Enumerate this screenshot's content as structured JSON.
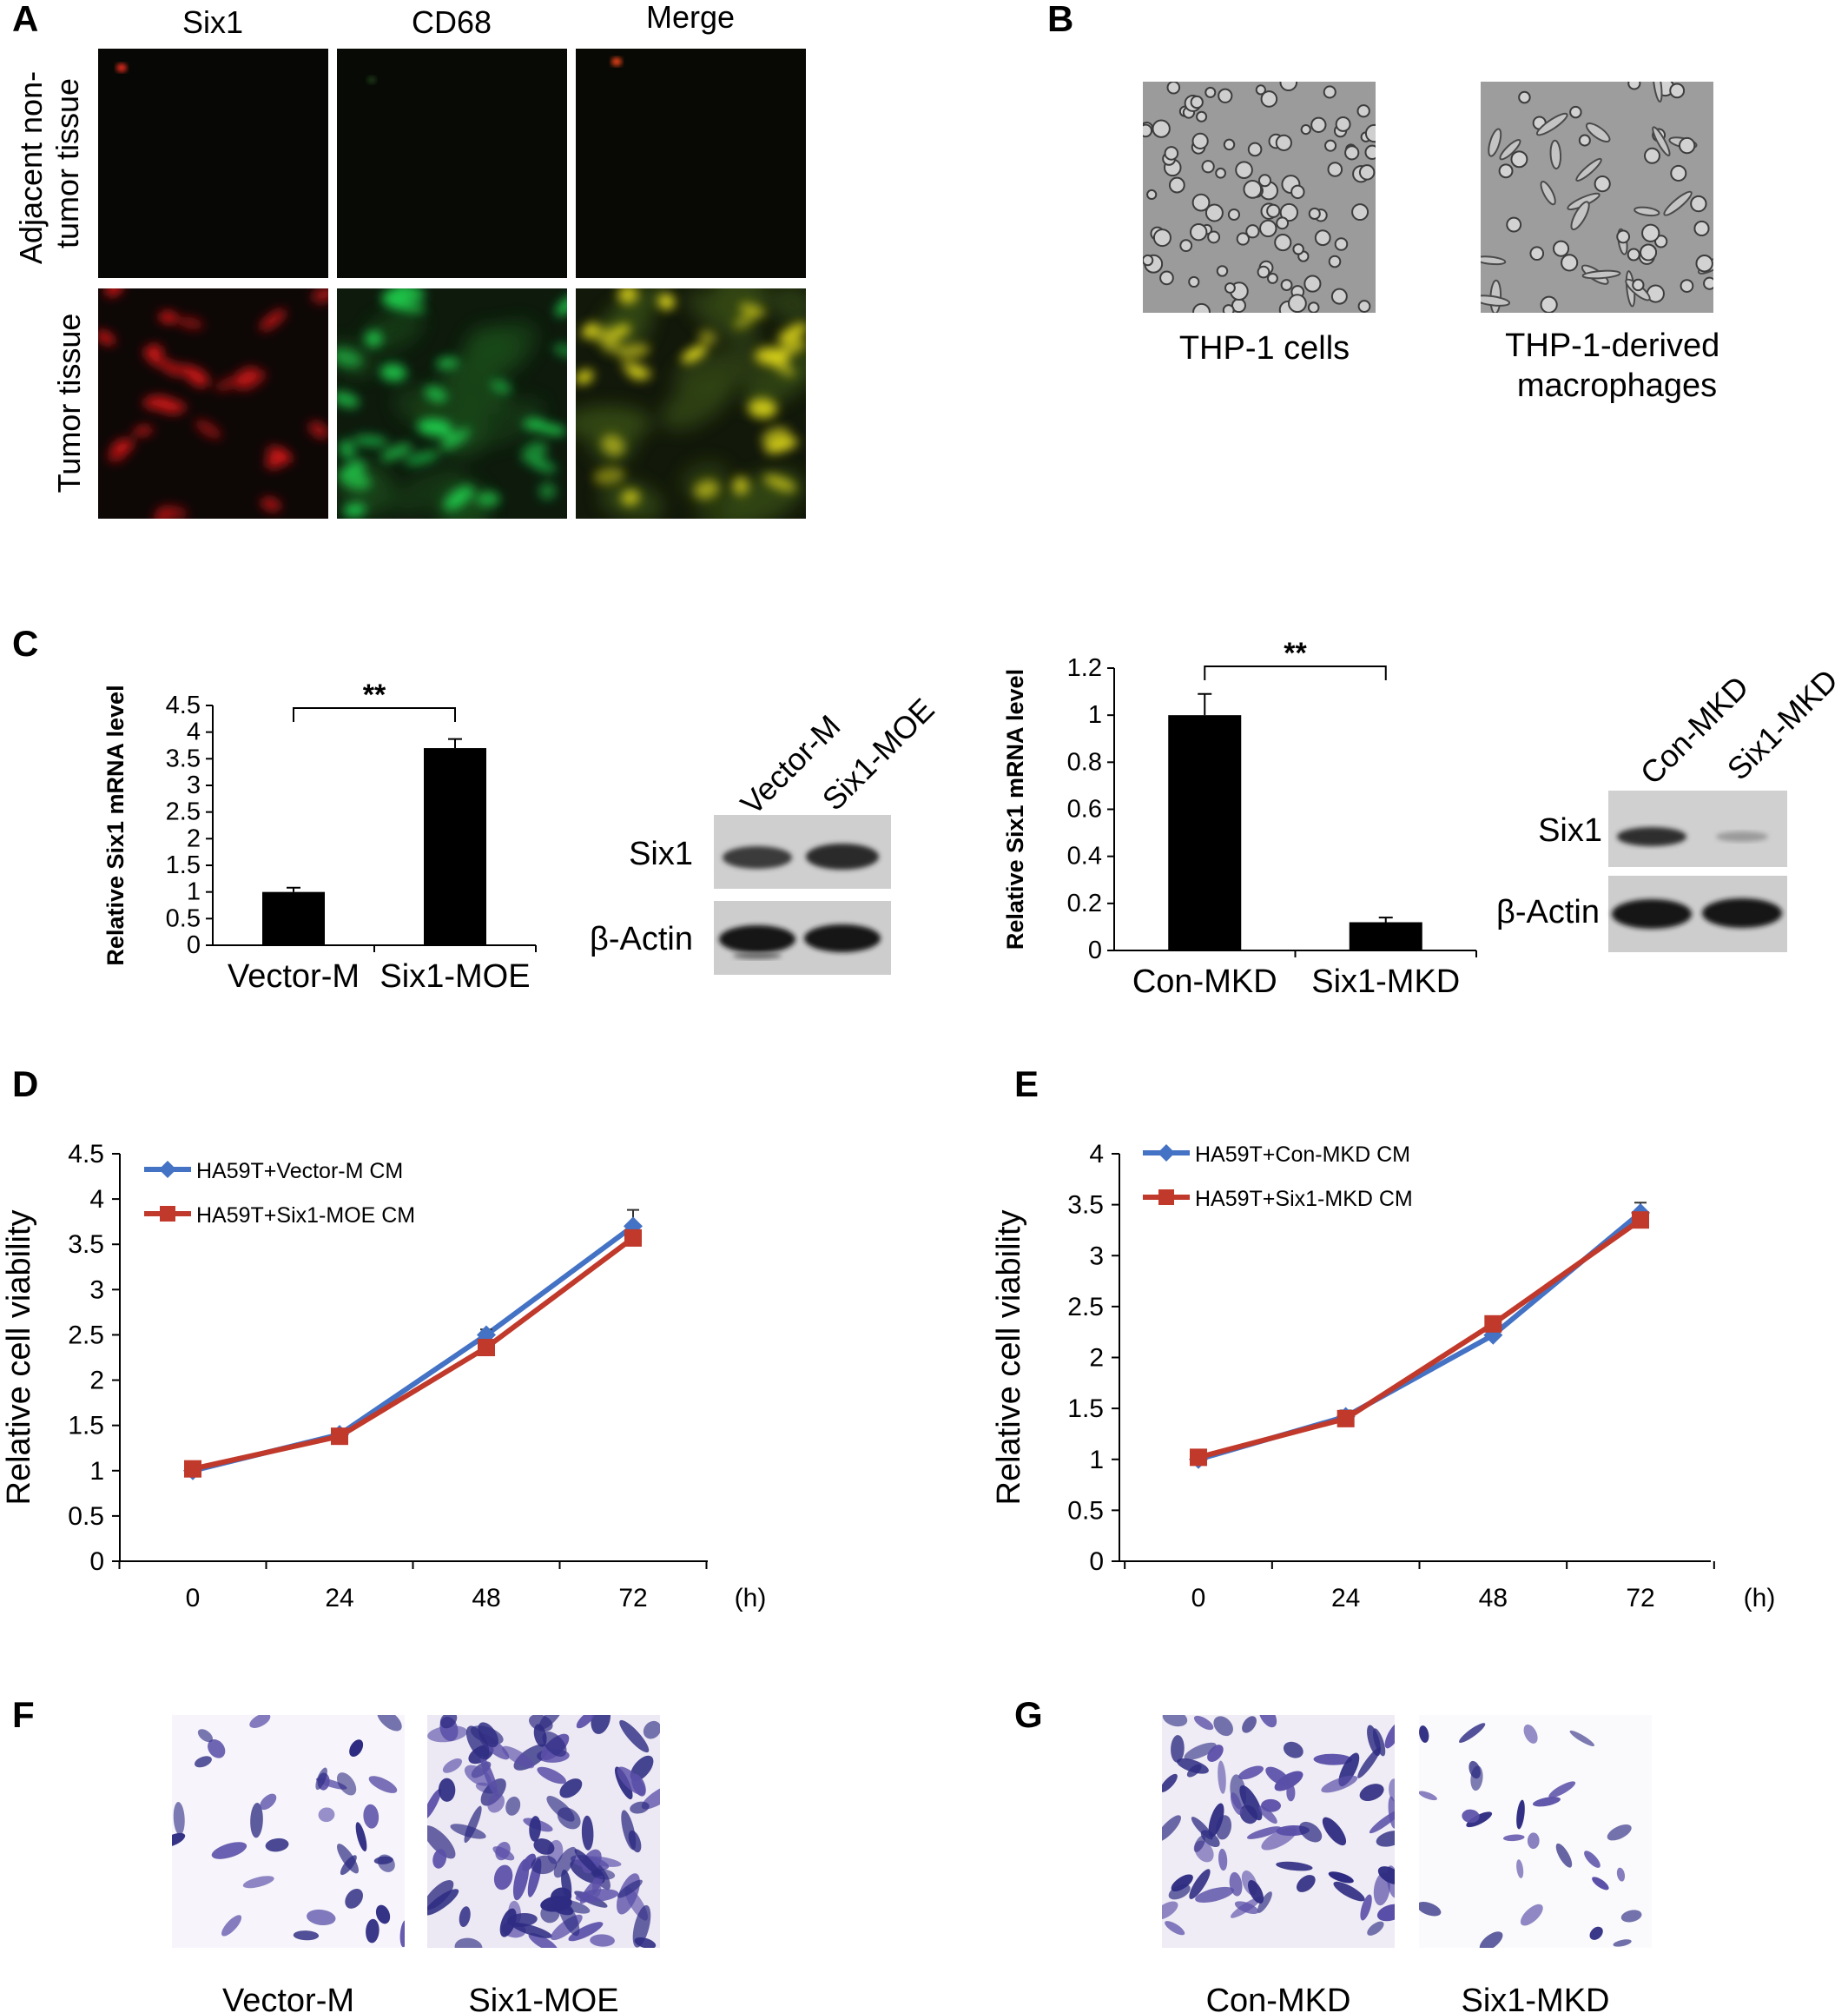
{
  "panels": {
    "A": {
      "letter": "A",
      "col_headers": [
        "Six1",
        "CD68",
        "Merge"
      ],
      "row_labels": [
        [
          "Adjacent non-",
          "tumor tissue"
        ],
        [
          "Tumor tissue"
        ]
      ]
    },
    "B": {
      "letter": "B",
      "captions": [
        [
          "THP-1 cells"
        ],
        [
          "THP-1-derived",
          "macrophages"
        ]
      ]
    },
    "C": {
      "letter": "C",
      "blot_left": {
        "lanes": [
          "Vector-M",
          "Six1-MOE"
        ],
        "rows": [
          "Six1",
          "β-Actin"
        ]
      },
      "blot_right": {
        "lanes": [
          "Con-MKD",
          "Six1-MKD"
        ],
        "rows": [
          "Six1",
          "β-Actin"
        ]
      }
    },
    "D": {
      "letter": "D"
    },
    "E": {
      "letter": "E"
    },
    "F": {
      "letter": "F",
      "captions": [
        "Vector-M",
        "Six1-MOE"
      ]
    },
    "G": {
      "letter": "G",
      "captions": [
        "Con-MKD",
        "Six1-MKD"
      ]
    }
  },
  "colors": {
    "blue_series": "#4472c4",
    "red_series": "#c0392b",
    "bar": "#000000"
  },
  "chart_data": [
    {
      "type": "bar",
      "panel": "C-left",
      "categories": [
        "Vector-M",
        "Six1-MOE"
      ],
      "values": [
        1.0,
        3.7
      ],
      "errors": [
        0.08,
        0.17
      ],
      "ylabel": "Relative Six1 mRNA level",
      "ylim": [
        0,
        4.5
      ],
      "yticks": [
        "0",
        "0.5",
        "1",
        "1.5",
        "2",
        "2.5",
        "3",
        "3.5",
        "4",
        "4.5"
      ],
      "significance": "**"
    },
    {
      "type": "bar",
      "panel": "C-right",
      "categories": [
        "Con-MKD",
        "Six1-MKD"
      ],
      "values": [
        1.0,
        0.12
      ],
      "errors": [
        0.09,
        0.02
      ],
      "ylabel": "Relative Six1 mRNA level",
      "ylim": [
        0,
        1.2
      ],
      "yticks": [
        "0",
        "0.2",
        "0.4",
        "0.6",
        "0.8",
        "1",
        "1.2"
      ],
      "significance": "**"
    },
    {
      "type": "line",
      "panel": "D",
      "x": [
        0,
        24,
        48,
        72
      ],
      "xticks": [
        "0",
        "24",
        "48",
        "72"
      ],
      "xunit": "(h)",
      "ylabel": "Relative cell viability",
      "ylim": [
        0,
        4.5
      ],
      "yticks": [
        "0",
        "0.5",
        "1",
        "1.5",
        "2",
        "2.5",
        "3",
        "3.5",
        "4",
        "4.5"
      ],
      "legend": "top-left",
      "series": [
        {
          "name": "HA59T+Vector-M CM",
          "values": [
            1.0,
            1.4,
            2.5,
            3.7
          ],
          "errors": [
            0.03,
            0.05,
            0.06,
            0.18
          ],
          "color": "#4472c4",
          "marker": "diamond"
        },
        {
          "name": "HA59T+Six1-MOE CM",
          "values": [
            1.02,
            1.38,
            2.36,
            3.57
          ],
          "errors": [
            0.03,
            0.05,
            0.05,
            0.08
          ],
          "color": "#c0392b",
          "marker": "square"
        }
      ]
    },
    {
      "type": "line",
      "panel": "E",
      "x": [
        0,
        24,
        48,
        72
      ],
      "xticks": [
        "0",
        "24",
        "48",
        "72"
      ],
      "xunit": "(h)",
      "ylabel": "Relative cell viability",
      "ylim": [
        0,
        4
      ],
      "yticks": [
        "0",
        "0.5",
        "1",
        "1.5",
        "2",
        "2.5",
        "3",
        "3.5",
        "4"
      ],
      "legend": "top-left",
      "series": [
        {
          "name": "HA59T+Con-MKD CM",
          "values": [
            1.0,
            1.42,
            2.22,
            3.42
          ],
          "errors": [
            0.03,
            0.06,
            0.05,
            0.1
          ],
          "color": "#4472c4",
          "marker": "diamond"
        },
        {
          "name": "HA59T+Six1-MKD CM",
          "values": [
            1.02,
            1.4,
            2.33,
            3.35
          ],
          "errors": [
            0.03,
            0.05,
            0.05,
            0.07
          ],
          "color": "#c0392b",
          "marker": "square"
        }
      ]
    }
  ]
}
